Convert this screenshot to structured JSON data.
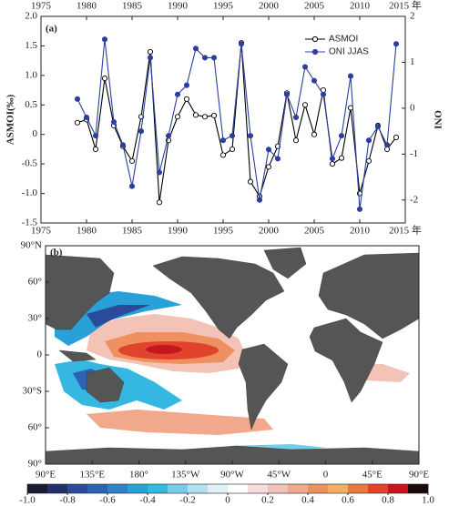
{
  "chart_data": [
    {
      "type": "line",
      "panel_label": "(a)",
      "ylabel": "ASMOI(‰)",
      "y2label": "ONI",
      "x": [
        1979,
        1980,
        1981,
        1982,
        1983,
        1984,
        1985,
        1986,
        1987,
        1988,
        1989,
        1990,
        1991,
        1992,
        1993,
        1994,
        1995,
        1996,
        1997,
        1998,
        1999,
        2000,
        2001,
        2002,
        2003,
        2004,
        2005,
        2006,
        2007,
        2008,
        2009,
        2010,
        2011,
        2012,
        2013,
        2014
      ],
      "series": [
        {
          "name": "ASMOI",
          "color": "#000000",
          "marker": "open",
          "values": [
            0.2,
            0.25,
            -0.25,
            0.95,
            0.15,
            -0.2,
            -0.45,
            0.3,
            1.4,
            -1.15,
            -0.1,
            0.3,
            0.6,
            0.33,
            0.3,
            0.32,
            -0.35,
            -0.25,
            1.55,
            -0.8,
            -1.05,
            -0.55,
            -0.2,
            0.7,
            -0.1,
            0.5,
            0.0,
            0.75,
            -0.5,
            -0.4,
            0.45,
            -1.0,
            -0.45,
            0.15,
            -0.25,
            -0.05
          ]
        },
        {
          "name": "ONI JJAS",
          "color": "#2b3fa0",
          "marker": "filled",
          "axis": "y2",
          "values": [
            0.2,
            -0.2,
            -0.6,
            1.5,
            -0.3,
            -0.8,
            -1.7,
            -0.5,
            1.1,
            -1.4,
            -0.6,
            0.3,
            0.5,
            1.3,
            1.1,
            1.1,
            -0.7,
            -0.6,
            1.4,
            -0.6,
            -2.0,
            -0.9,
            -1.1,
            0.3,
            -0.2,
            0.9,
            0.6,
            0.3,
            -1.1,
            -0.6,
            0.7,
            -2.2,
            -0.7,
            -0.4,
            -0.8,
            1.4
          ]
        }
      ],
      "xlim": [
        1975,
        2015
      ],
      "xticks": [
        1975,
        1980,
        1985,
        1990,
        1995,
        2000,
        2005,
        2010,
        {
          "value": 2015,
          "label": "2015 年"
        }
      ],
      "ylim": [
        -1.5,
        2
      ],
      "yticks": [
        -1.5,
        {
          "value": -1,
          "label": "-1.0"
        },
        -0.5,
        0,
        0.5,
        {
          "value": 1,
          "label": "1.0"
        },
        1.5,
        {
          "value": 2,
          "label": "2.0"
        }
      ],
      "y2lim": [
        -2.5,
        2
      ],
      "y2ticks": [
        -2,
        -1,
        0,
        1,
        2
      ],
      "legend": "upper right",
      "grid": false
    },
    {
      "type": "map",
      "panel_label": "(b)",
      "xtick_labels": [
        "90°E",
        "135°E",
        "180°",
        "135°W",
        "90°W",
        "45°W",
        "0",
        "45°E",
        "90°E"
      ],
      "ytick_labels": [
        "90°N",
        "60°",
        "30°",
        "0",
        "30°S",
        "60°",
        "90°"
      ],
      "colorbar": {
        "lim": [
          -1,
          1
        ],
        "colors": [
          "#1b1a33",
          "#24306a",
          "#2c4a9b",
          "#2d63b5",
          "#2d82c9",
          "#2aa0d8",
          "#34b8e2",
          "#75cdea",
          "#b2e0f1",
          "#dff0f7",
          "#ffffff",
          "#f6dcdc",
          "#f3c3b8",
          "#f1a88c",
          "#ee9060",
          "#f0b060",
          "#e97a3a",
          "#e0452b",
          "#c4161c",
          "#1a0a0a"
        ],
        "ticks": [
          {
            "value": -1,
            "label": "-1.0"
          },
          -0.8,
          -0.6,
          -0.4,
          -0.2,
          0,
          0.2,
          0.4,
          0.6,
          0.8,
          {
            "value": 1,
            "label": "1.0"
          }
        ]
      }
    }
  ]
}
